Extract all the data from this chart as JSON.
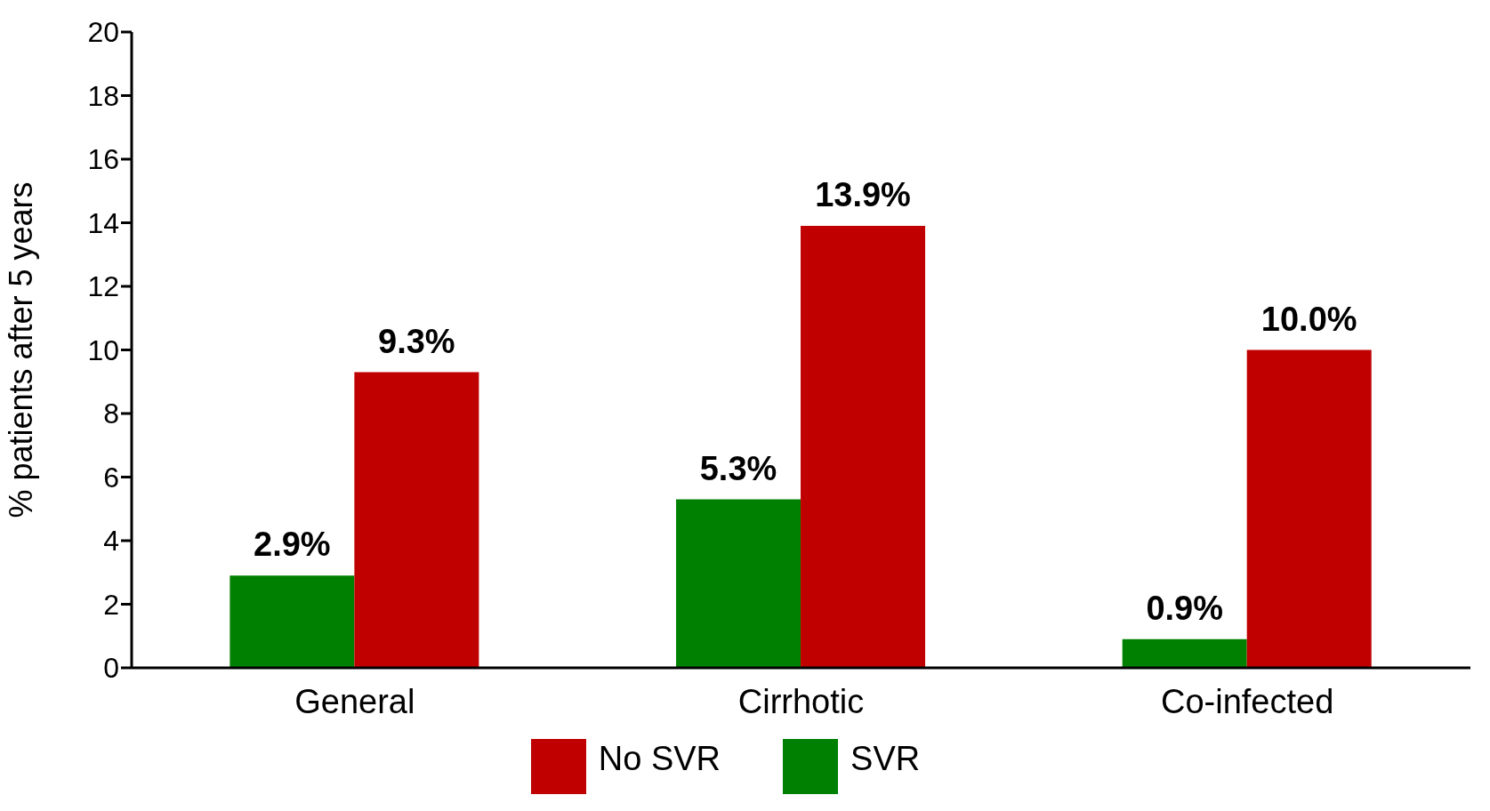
{
  "chart_data": {
    "type": "bar",
    "ylabel": "% patients after 5 years",
    "categories": [
      "General",
      "Cirrhotic",
      "Co-infected"
    ],
    "series": [
      {
        "name": "SVR",
        "color": "#008000",
        "values": [
          2.9,
          5.3,
          0.9
        ],
        "value_labels": [
          "2.9%",
          "5.3%",
          "0.9%"
        ]
      },
      {
        "name": "No SVR",
        "color": "#c00000",
        "values": [
          9.3,
          13.9,
          10.0
        ],
        "value_labels": [
          "9.3%",
          "13.9%",
          "10.0%"
        ]
      }
    ],
    "ylim": [
      0,
      20
    ],
    "yticks": [
      0,
      2,
      4,
      6,
      8,
      10,
      12,
      14,
      16,
      18,
      20
    ],
    "grid": false,
    "legend": "bottom"
  }
}
